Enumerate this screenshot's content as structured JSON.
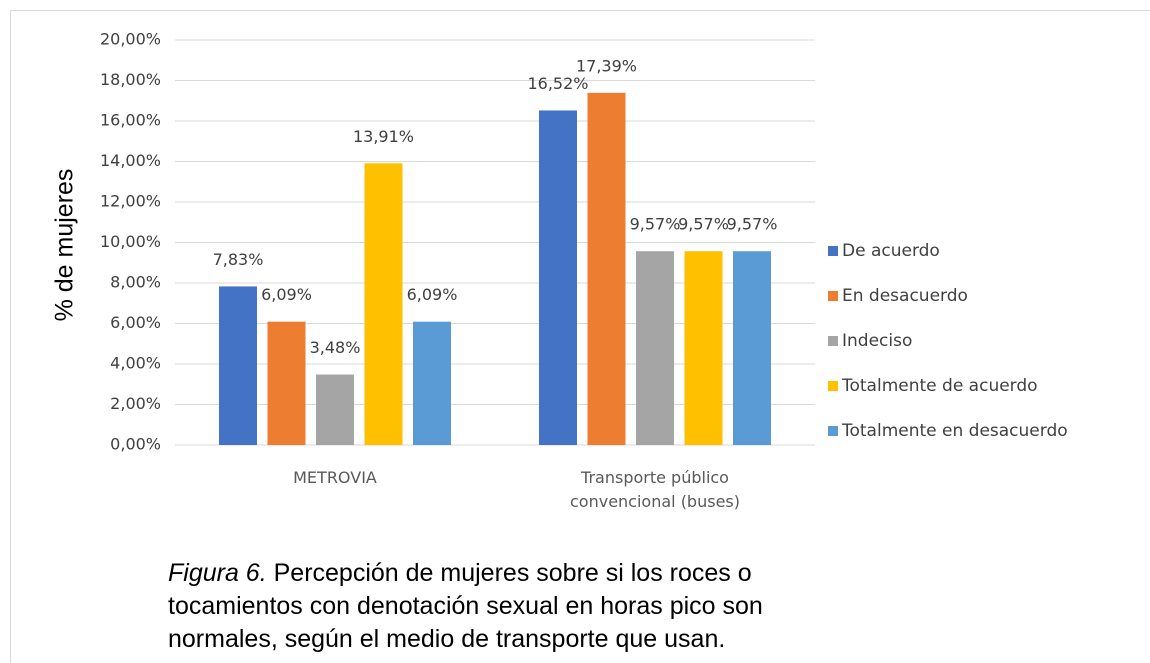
{
  "chart_data": {
    "type": "bar",
    "y_label": "% de mujeres",
    "categories": [
      "METROVIA",
      "Transporte público convencional (buses)"
    ],
    "series": [
      {
        "name": "De acuerdo",
        "color": "#4472c4",
        "values": [
          7.83,
          16.52
        ],
        "value_labels": [
          "7,83%",
          "16,52%"
        ]
      },
      {
        "name": "En desacuerdo",
        "color": "#ed7d31",
        "values": [
          6.09,
          17.39
        ],
        "value_labels": [
          "6,09%",
          "17,39%"
        ]
      },
      {
        "name": "Indeciso",
        "color": "#a5a5a5",
        "values": [
          3.48,
          9.57
        ],
        "value_labels": [
          "3,48%",
          "9,57%"
        ]
      },
      {
        "name": "Totalmente de acuerdo",
        "color": "#ffc000",
        "values": [
          13.91,
          9.57
        ],
        "value_labels": [
          "13,91%",
          "9,57%"
        ]
      },
      {
        "name": "Totalmente en desacuerdo",
        "color": "#5b9bd5",
        "values": [
          6.09,
          9.57
        ],
        "value_labels": [
          "6,09%",
          "9,57%"
        ]
      }
    ],
    "ylim": [
      0,
      20
    ],
    "yticks": [
      {
        "value": 0,
        "label": "0,00%"
      },
      {
        "value": 2,
        "label": "2,00%"
      },
      {
        "value": 4,
        "label": "4,00%"
      },
      {
        "value": 6,
        "label": "6,00%"
      },
      {
        "value": 8,
        "label": "8,00%"
      },
      {
        "value": 10,
        "label": "10,00%"
      },
      {
        "value": 12,
        "label": "12,00%"
      },
      {
        "value": 14,
        "label": "14,00%"
      },
      {
        "value": 16,
        "label": "16,00%"
      },
      {
        "value": 18,
        "label": "18,00%"
      },
      {
        "value": 20,
        "label": "20,00%"
      }
    ],
    "grid": true,
    "legend": "right"
  },
  "caption": {
    "label": "Figura 6.",
    "text": "Percepción de mujeres sobre si los roces o tocamientos con denotación sexual en horas pico son normales, según el medio de transporte que usan."
  }
}
